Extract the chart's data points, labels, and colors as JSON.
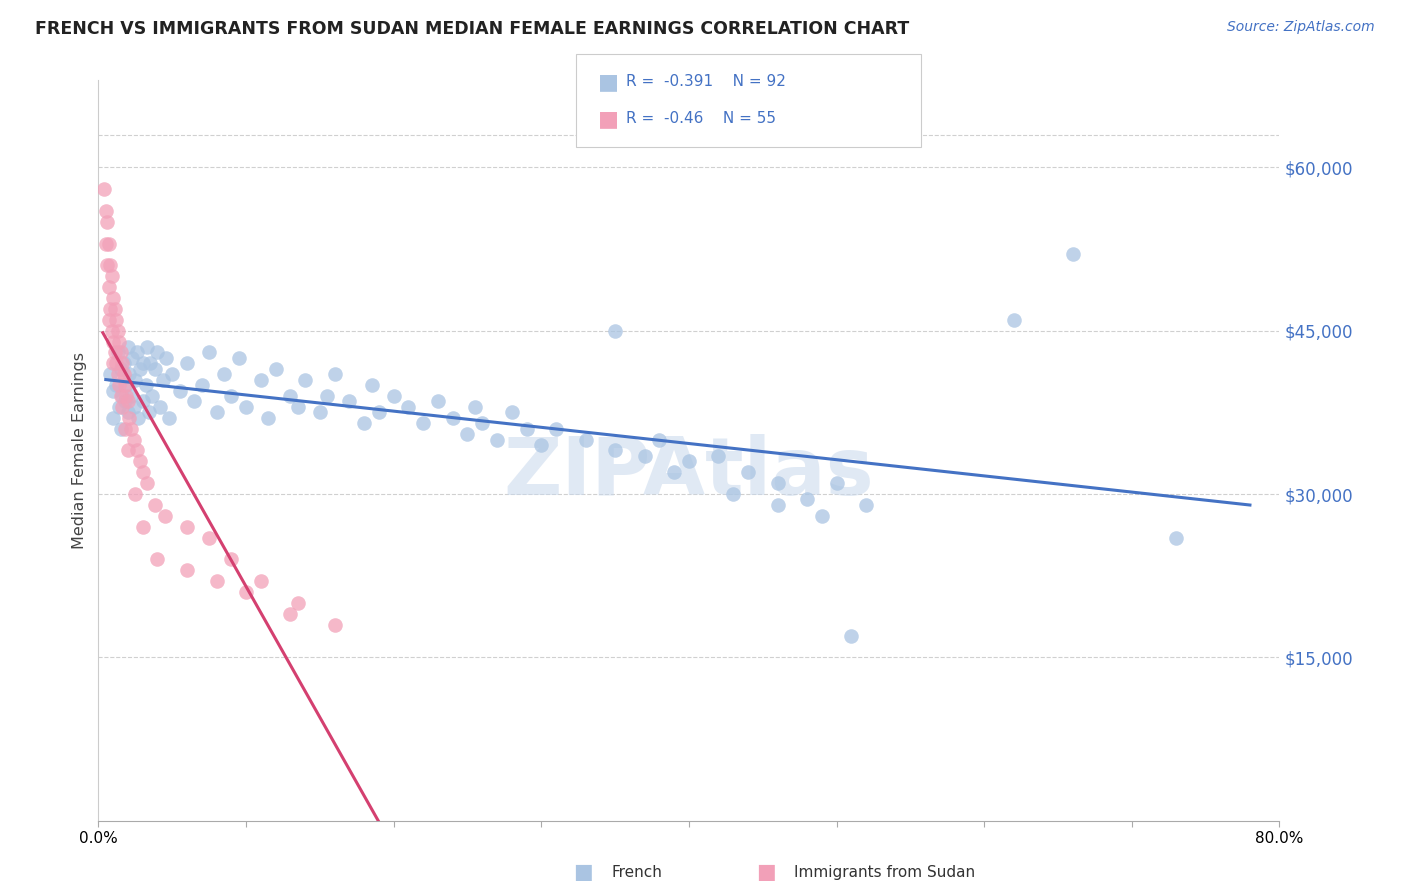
{
  "title": "FRENCH VS IMMIGRANTS FROM SUDAN MEDIAN FEMALE EARNINGS CORRELATION CHART",
  "source": "Source: ZipAtlas.com",
  "ylabel": "Median Female Earnings",
  "ytick_labels": [
    "$15,000",
    "$30,000",
    "$45,000",
    "$60,000"
  ],
  "ytick_values": [
    15000,
    30000,
    45000,
    60000
  ],
  "xtick_values": [
    0.0,
    0.1,
    0.2,
    0.3,
    0.4,
    0.5,
    0.6,
    0.7,
    0.8
  ],
  "xtick_labels": [
    "0.0%",
    "",
    "",
    "",
    "",
    "",
    "",
    "",
    "80.0%"
  ],
  "legend_labels": [
    "French",
    "Immigrants from Sudan"
  ],
  "legend_r": [
    -0.391,
    -0.46
  ],
  "legend_n": [
    92,
    55
  ],
  "french_color": "#aac4e2",
  "sudan_color": "#f2a0b8",
  "french_line_color": "#4472c4",
  "sudan_line_color": "#d44070",
  "gray_dash_color": "#cccccc",
  "watermark_color": "#c8d8ec",
  "title_color": "#222222",
  "source_color": "#4472c4",
  "xlim": [
    0.0,
    0.8
  ],
  "ylim": [
    0,
    68000
  ],
  "french_x": [
    0.008,
    0.01,
    0.01,
    0.012,
    0.013,
    0.014,
    0.015,
    0.015,
    0.016,
    0.017,
    0.018,
    0.019,
    0.02,
    0.02,
    0.021,
    0.022,
    0.023,
    0.024,
    0.025,
    0.026,
    0.027,
    0.028,
    0.03,
    0.03,
    0.032,
    0.033,
    0.034,
    0.035,
    0.036,
    0.038,
    0.04,
    0.042,
    0.044,
    0.046,
    0.048,
    0.05,
    0.055,
    0.06,
    0.065,
    0.07,
    0.075,
    0.08,
    0.085,
    0.09,
    0.095,
    0.1,
    0.11,
    0.115,
    0.12,
    0.13,
    0.135,
    0.14,
    0.15,
    0.155,
    0.16,
    0.17,
    0.18,
    0.185,
    0.19,
    0.2,
    0.21,
    0.22,
    0.23,
    0.24,
    0.25,
    0.255,
    0.26,
    0.27,
    0.28,
    0.29,
    0.3,
    0.31,
    0.33,
    0.35,
    0.37,
    0.39,
    0.42,
    0.44,
    0.46,
    0.48,
    0.5,
    0.52,
    0.38,
    0.4,
    0.35,
    0.43,
    0.46,
    0.49,
    0.51,
    0.62,
    0.66,
    0.73
  ],
  "french_y": [
    41000,
    39500,
    37000,
    40000,
    43000,
    38000,
    41500,
    36000,
    39000,
    42000,
    38500,
    40000,
    43500,
    37500,
    41000,
    39000,
    42500,
    38000,
    40500,
    43000,
    37000,
    41500,
    42000,
    38500,
    40000,
    43500,
    37500,
    42000,
    39000,
    41500,
    43000,
    38000,
    40500,
    42500,
    37000,
    41000,
    39500,
    42000,
    38500,
    40000,
    43000,
    37500,
    41000,
    39000,
    42500,
    38000,
    40500,
    37000,
    41500,
    39000,
    38000,
    40500,
    37500,
    39000,
    41000,
    38500,
    36500,
    40000,
    37500,
    39000,
    38000,
    36500,
    38500,
    37000,
    35500,
    38000,
    36500,
    35000,
    37500,
    36000,
    34500,
    36000,
    35000,
    34000,
    33500,
    32000,
    33500,
    32000,
    31000,
    29500,
    31000,
    29000,
    35000,
    33000,
    45000,
    30000,
    29000,
    28000,
    17000,
    46000,
    52000,
    26000
  ],
  "sudan_x": [
    0.004,
    0.005,
    0.005,
    0.006,
    0.006,
    0.007,
    0.007,
    0.007,
    0.008,
    0.008,
    0.009,
    0.009,
    0.01,
    0.01,
    0.01,
    0.011,
    0.011,
    0.012,
    0.012,
    0.013,
    0.013,
    0.014,
    0.014,
    0.015,
    0.015,
    0.016,
    0.016,
    0.017,
    0.018,
    0.019,
    0.02,
    0.021,
    0.022,
    0.024,
    0.026,
    0.028,
    0.03,
    0.033,
    0.038,
    0.045,
    0.06,
    0.075,
    0.09,
    0.11,
    0.135,
    0.018,
    0.02,
    0.025,
    0.03,
    0.04,
    0.06,
    0.08,
    0.1,
    0.13,
    0.16
  ],
  "sudan_y": [
    58000,
    56000,
    53000,
    55000,
    51000,
    53000,
    49000,
    46000,
    51000,
    47000,
    50000,
    45000,
    48000,
    44000,
    42000,
    47000,
    43000,
    46000,
    42000,
    45000,
    41000,
    44000,
    40000,
    43000,
    39000,
    42000,
    38000,
    41000,
    40000,
    39000,
    38500,
    37000,
    36000,
    35000,
    34000,
    33000,
    32000,
    31000,
    29000,
    28000,
    27000,
    26000,
    24000,
    22000,
    20000,
    36000,
    34000,
    30000,
    27000,
    24000,
    23000,
    22000,
    21000,
    19000,
    18000
  ]
}
